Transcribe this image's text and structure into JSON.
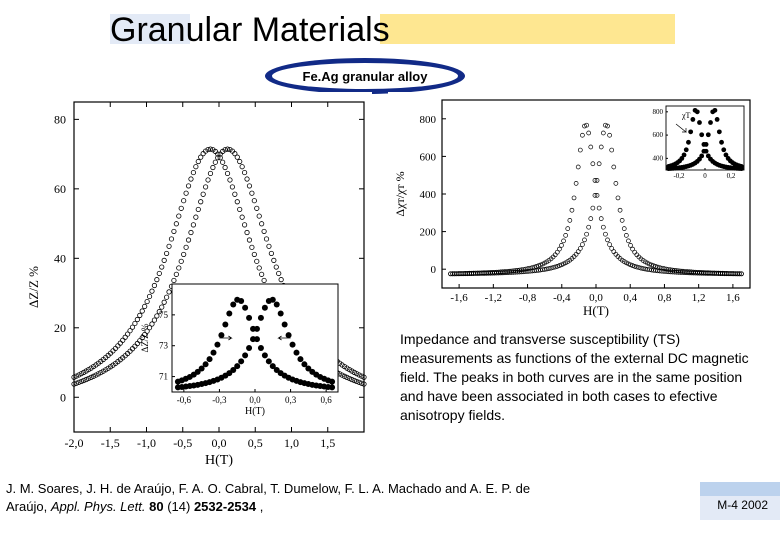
{
  "title": "Granular Materials",
  "badge": "Fe.Ag granular alloy",
  "colors": {
    "hl_left": "#e3eaf6",
    "hl_right": "#fee791",
    "badge_ring": "#112a87",
    "footer_top": "#bcd2ed",
    "footer_bot": "#e3eaf6",
    "frame": "#000000",
    "marker": "#000000"
  },
  "chart_left": {
    "type": "scatter",
    "xlabel": "H(T)",
    "ylabel": "ΔZ/Z %",
    "xlim": [
      -2.0,
      2.0
    ],
    "ylim": [
      -10,
      85
    ],
    "xticks": [
      -2.0,
      -1.5,
      -1.0,
      -0.5,
      0.0,
      0.5,
      1.0,
      1.5
    ],
    "yticks": [
      0,
      20,
      40,
      60,
      80
    ],
    "xtick_labels": [
      "-2,0",
      "-1,5",
      "-1,0",
      "-0,5",
      "0,0",
      "0,5",
      "1,0",
      "1,5"
    ],
    "ytick_labels": [
      "0",
      "20",
      "40",
      "60",
      "80"
    ],
    "series": [
      {
        "marker": "circle-open",
        "size": 2.2,
        "color": "#000000",
        "peak_x": -0.12,
        "peak_y": 76
      },
      {
        "marker": "circle-open",
        "size": 2.2,
        "color": "#000000",
        "peak_x": 0.12,
        "peak_y": 76
      }
    ],
    "inset": {
      "xlabel": "H(T)",
      "ylabel": "ΔZ/Z %",
      "xlim": [
        -0.7,
        0.7
      ],
      "ylim": [
        70,
        77
      ],
      "xticks": [
        -0.6,
        -0.3,
        0.0,
        0.3,
        0.6
      ],
      "yticks": [
        71,
        73,
        75
      ],
      "xtick_labels": [
        "-0,6",
        "-0,3",
        "0,0",
        "0,3",
        "0,6"
      ],
      "ytick_labels": [
        "71",
        "73",
        "75"
      ],
      "marker": "circle-fill",
      "size": 3.0,
      "color": "#000000"
    }
  },
  "chart_right": {
    "type": "scatter",
    "xlabel": "H(T)",
    "ylabel": "Δχт/χт %",
    "xlim": [
      -1.8,
      1.8
    ],
    "ylim": [
      -100,
      900
    ],
    "xticks": [
      -1.6,
      -1.2,
      -0.8,
      -0.4,
      0.0,
      0.4,
      0.8,
      1.2,
      1.6
    ],
    "yticks": [
      0,
      200,
      400,
      600,
      800
    ],
    "xtick_labels": [
      "-1,6",
      "-1,2",
      "-0,8",
      "-0,4",
      "0,0",
      "0,4",
      "0,8",
      "1,2",
      "1,6"
    ],
    "ytick_labels": [
      "0",
      "200",
      "400",
      "600",
      "800"
    ],
    "series": [
      {
        "marker": "circle-open",
        "size": 2.0,
        "color": "#000000",
        "peak_x": -0.12,
        "peak_y": 800
      },
      {
        "marker": "circle-open",
        "size": 2.0,
        "color": "#000000",
        "peak_x": 0.12,
        "peak_y": 800
      }
    ],
    "inset": {
      "xlim": [
        -0.3,
        0.3
      ],
      "ylim": [
        300,
        850
      ],
      "xticks": [
        -0.2,
        0.0,
        0.2
      ],
      "yticks": [
        400,
        600,
        800
      ],
      "xtick_labels": [
        "-0,2",
        "0",
        "0,2"
      ],
      "ytick_labels": [
        "400",
        "600",
        "800"
      ],
      "marker": "circle-fill",
      "size": 2.4,
      "color": "#000000",
      "arrow_label": "χТ"
    }
  },
  "description": "Impedance and transverse susceptibility (TS) measurements as functions of the external DC magnetic field. The peaks in both curves are in the same position and have been associated in both cases to efective anisotropy fields.",
  "citation": {
    "authors": "J. M. Soares, J. H. de Araújo, F. A. O. Cabral, T. Dumelow, F. L. A. Machado and A. E. P. de Araújo, ",
    "journal": "Appl. Phys. Lett.",
    "volume": "80",
    "issue": "(14)",
    "pages": "2532-2534",
    "trail": " ,"
  },
  "footer": "M-4 2002"
}
